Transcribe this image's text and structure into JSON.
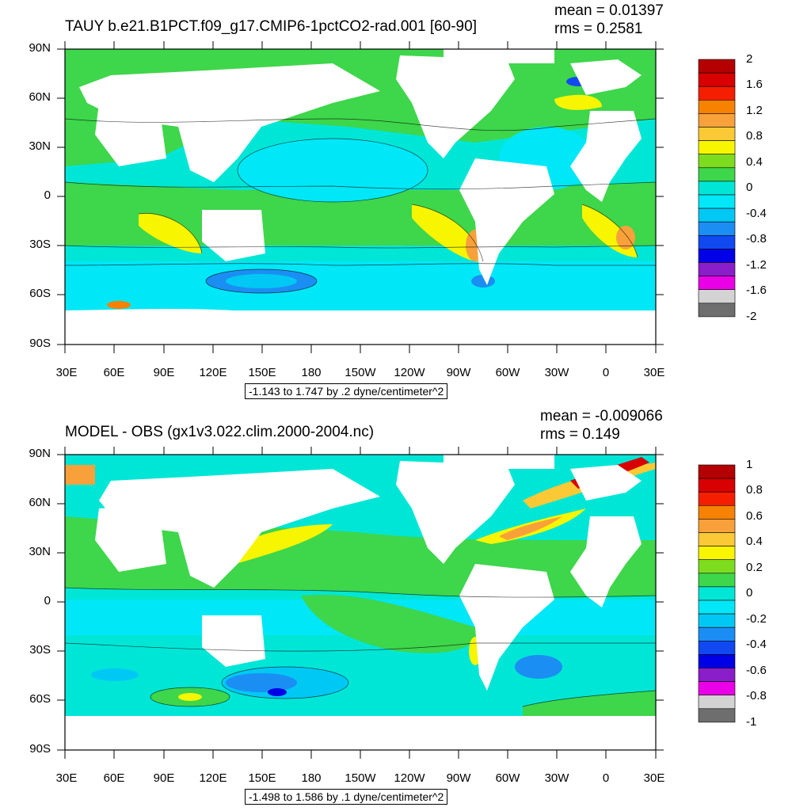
{
  "panels": [
    {
      "title": "TAUY b.e21.B1PCT.f09_g17.CMIP6-1pctCO2-rad.001 [60-90]",
      "mean_text": "mean = 0.01397",
      "rms_text": "rms = 0.2581",
      "contour_info": "-1.143 to 1.747 by .2 dyne/centimeter^2",
      "lat_labels": [
        "90N",
        "60N",
        "30N",
        "0",
        "30S",
        "60S",
        "90S"
      ],
      "lon_labels": [
        "30E",
        "60E",
        "90E",
        "120E",
        "150E",
        "180",
        "150W",
        "120W",
        "90W",
        "60W",
        "30W",
        "0",
        "30E"
      ],
      "colorbar": {
        "labels": [
          "2",
          "1.6",
          "1.2",
          "0.8",
          "0.4",
          "0",
          "-0.4",
          "-0.8",
          "-1.2",
          "-1.6",
          "-2"
        ],
        "colors": [
          "#b40000",
          "#d80000",
          "#f51e00",
          "#f78100",
          "#f8a13a",
          "#fbc936",
          "#f7f500",
          "#7ddc1e",
          "#3ed64b",
          "#00e6d6",
          "#00e7f7",
          "#00c8f4",
          "#1b8ef3",
          "#1149f0",
          "#0000e6",
          "#8a1ecb",
          "#ea00e6",
          "#d3d3d3",
          "#6e6e6e"
        ]
      }
    },
    {
      "title": "MODEL - OBS (gx1v3.022.clim.2000-2004.nc)",
      "mean_text": "mean = -0.009066",
      "rms_text": "rms = 0.149",
      "contour_info": "-1.498 to 1.586 by .1 dyne/centimeter^2",
      "lat_labels": [
        "90N",
        "60N",
        "30N",
        "0",
        "30S",
        "60S",
        "90S"
      ],
      "lon_labels": [
        "30E",
        "60E",
        "90E",
        "120E",
        "150E",
        "180",
        "150W",
        "120W",
        "90W",
        "60W",
        "30W",
        "0",
        "30E"
      ],
      "colorbar": {
        "labels": [
          "1",
          "0.8",
          "0.6",
          "0.4",
          "0.2",
          "0",
          "-0.2",
          "-0.4",
          "-0.6",
          "-0.8",
          "-1"
        ],
        "colors": [
          "#b40000",
          "#d80000",
          "#f51e00",
          "#f78100",
          "#f8a13a",
          "#fbc936",
          "#f7f500",
          "#7ddc1e",
          "#3ed64b",
          "#00e6d6",
          "#00e7f7",
          "#00c8f4",
          "#1b8ef3",
          "#1149f0",
          "#0000e6",
          "#8a1ecb",
          "#ea00e6",
          "#d3d3d3",
          "#6e6e6e"
        ]
      }
    }
  ]
}
